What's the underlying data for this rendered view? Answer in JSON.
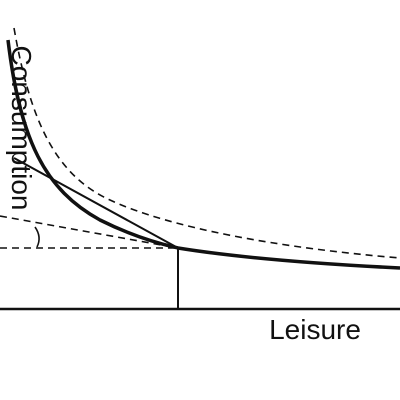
{
  "axes": {
    "y_label": "Consumption",
    "x_label": "Leisure"
  }
}
